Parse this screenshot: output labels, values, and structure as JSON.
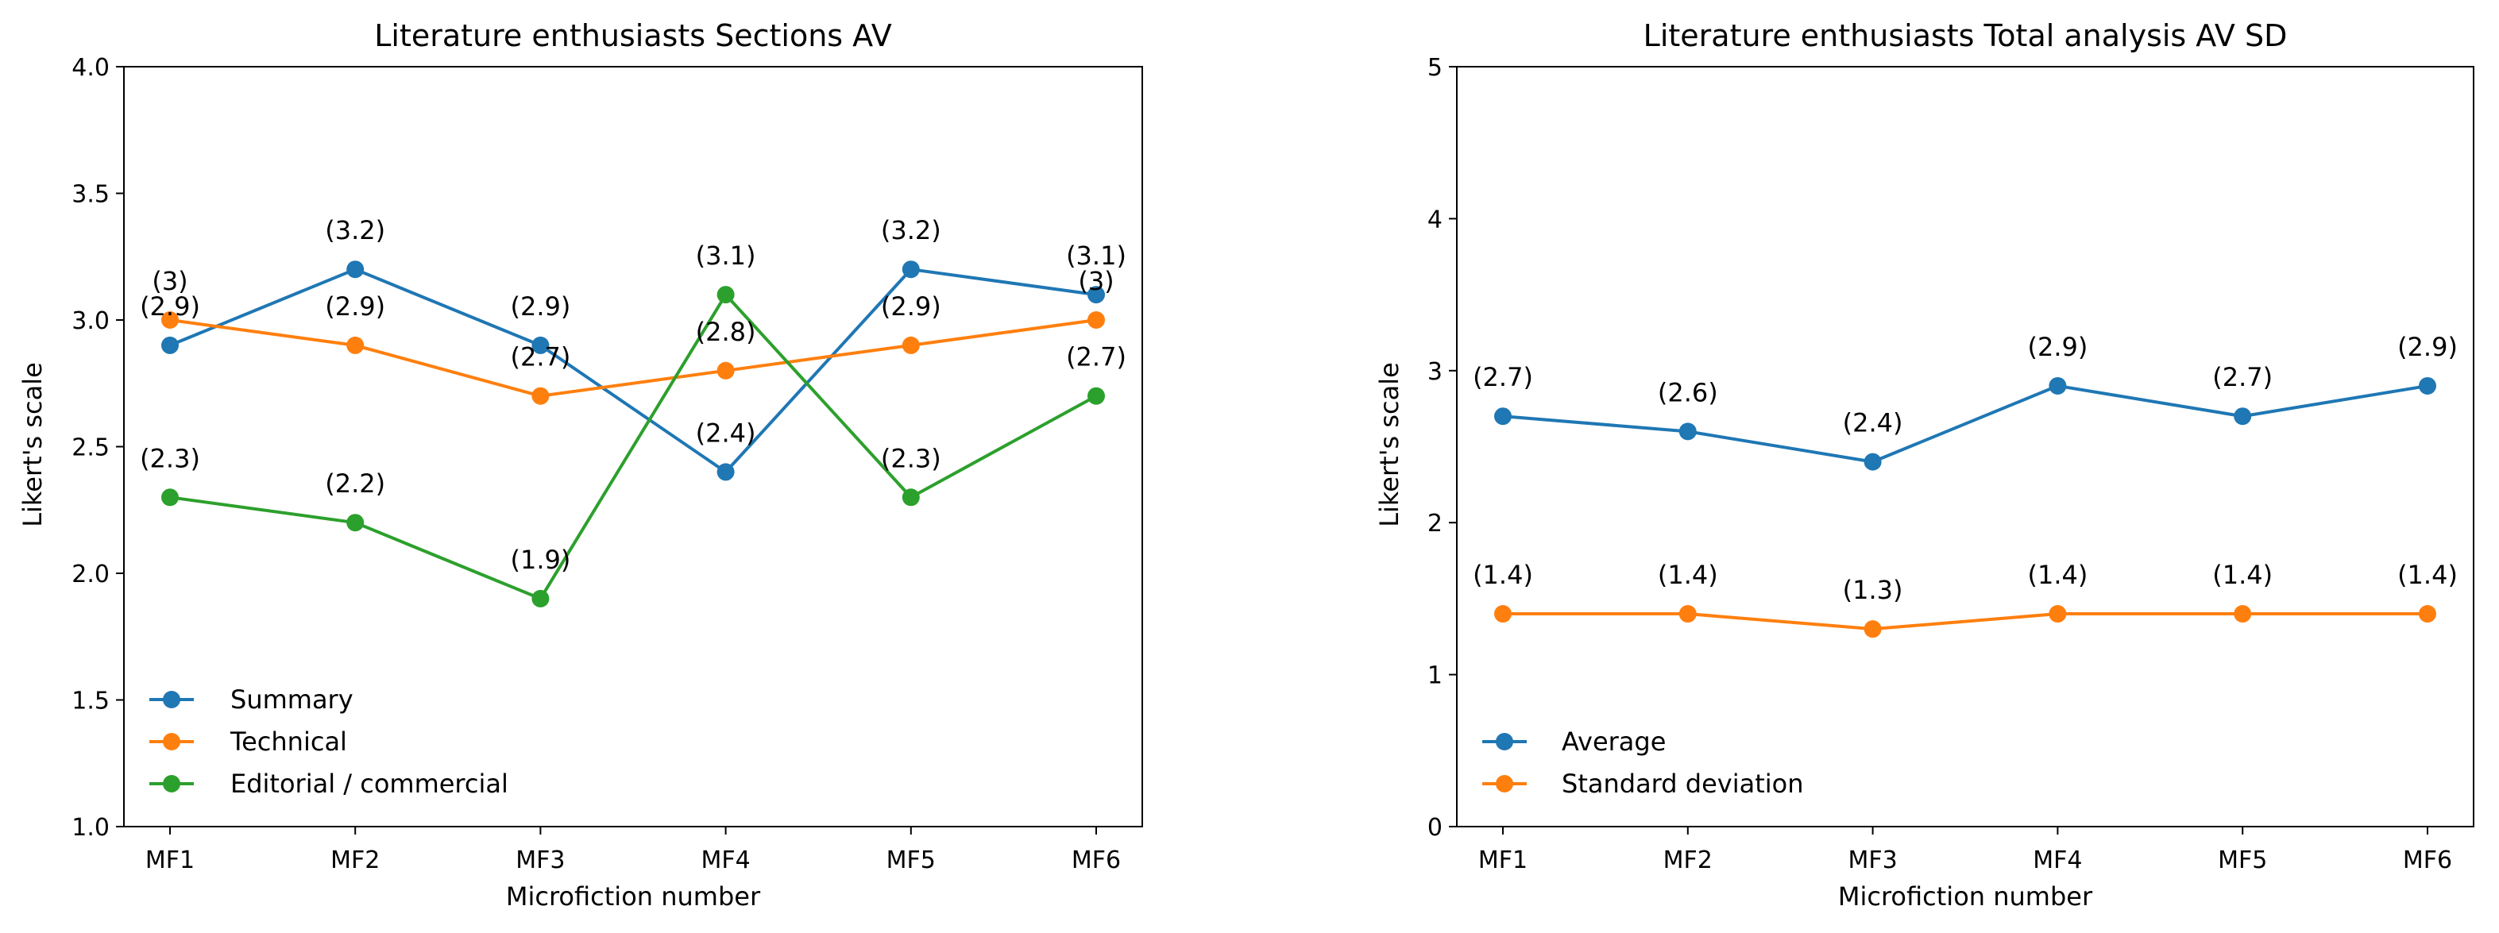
{
  "chart_data": [
    {
      "type": "line",
      "title": "Literature enthusiasts Sections AV",
      "xlabel": "Microfiction number",
      "ylabel": "Likert's scale",
      "categories": [
        "MF1",
        "MF2",
        "MF3",
        "MF4",
        "MF5",
        "MF6"
      ],
      "ylim": [
        1.0,
        4.0
      ],
      "yticks": [
        "1.0",
        "1.5",
        "2.0",
        "2.5",
        "3.0",
        "3.5",
        "4.0"
      ],
      "legend_position": "lower-left",
      "grid": false,
      "series": [
        {
          "name": "Summary",
          "color": "#1f77b4",
          "values": [
            2.9,
            3.2,
            2.9,
            2.4,
            3.2,
            3.1
          ],
          "labels": [
            "(2.9)",
            "(3.2)",
            "(2.9)",
            "(2.4)",
            "(3.2)",
            "(3.1)"
          ]
        },
        {
          "name": "Technical",
          "color": "#ff7f0e",
          "values": [
            3.0,
            2.9,
            2.7,
            2.8,
            2.9,
            3.0
          ],
          "labels": [
            "(3)",
            "(2.9)",
            "(2.7)",
            "(2.8)",
            "(2.9)",
            "(3)"
          ]
        },
        {
          "name": "Editorial / commercial",
          "color": "#2ca02c",
          "values": [
            2.3,
            2.2,
            1.9,
            3.1,
            2.3,
            2.7
          ],
          "labels": [
            "(2.3)",
            "(2.2)",
            "(1.9)",
            "(3.1)",
            "(2.3)",
            "(2.7)"
          ]
        }
      ]
    },
    {
      "type": "line",
      "title": "Literature enthusiasts Total analysis AV SD",
      "xlabel": "Microfiction number",
      "ylabel": "Likert's scale",
      "categories": [
        "MF1",
        "MF2",
        "MF3",
        "MF4",
        "MF5",
        "MF6"
      ],
      "ylim": [
        0,
        5
      ],
      "yticks": [
        "0",
        "1",
        "2",
        "3",
        "4",
        "5"
      ],
      "legend_position": "lower-left",
      "grid": false,
      "series": [
        {
          "name": "Average",
          "color": "#1f77b4",
          "values": [
            2.7,
            2.6,
            2.4,
            2.9,
            2.7,
            2.9
          ],
          "labels": [
            "(2.7)",
            "(2.6)",
            "(2.4)",
            "(2.9)",
            "(2.7)",
            "(2.9)"
          ]
        },
        {
          "name": "Standard deviation",
          "color": "#ff7f0e",
          "values": [
            1.4,
            1.4,
            1.3,
            1.4,
            1.4,
            1.4
          ],
          "labels": [
            "(1.4)",
            "(1.4)",
            "(1.3)",
            "(1.4)",
            "(1.4)",
            "(1.4)"
          ]
        }
      ]
    }
  ]
}
